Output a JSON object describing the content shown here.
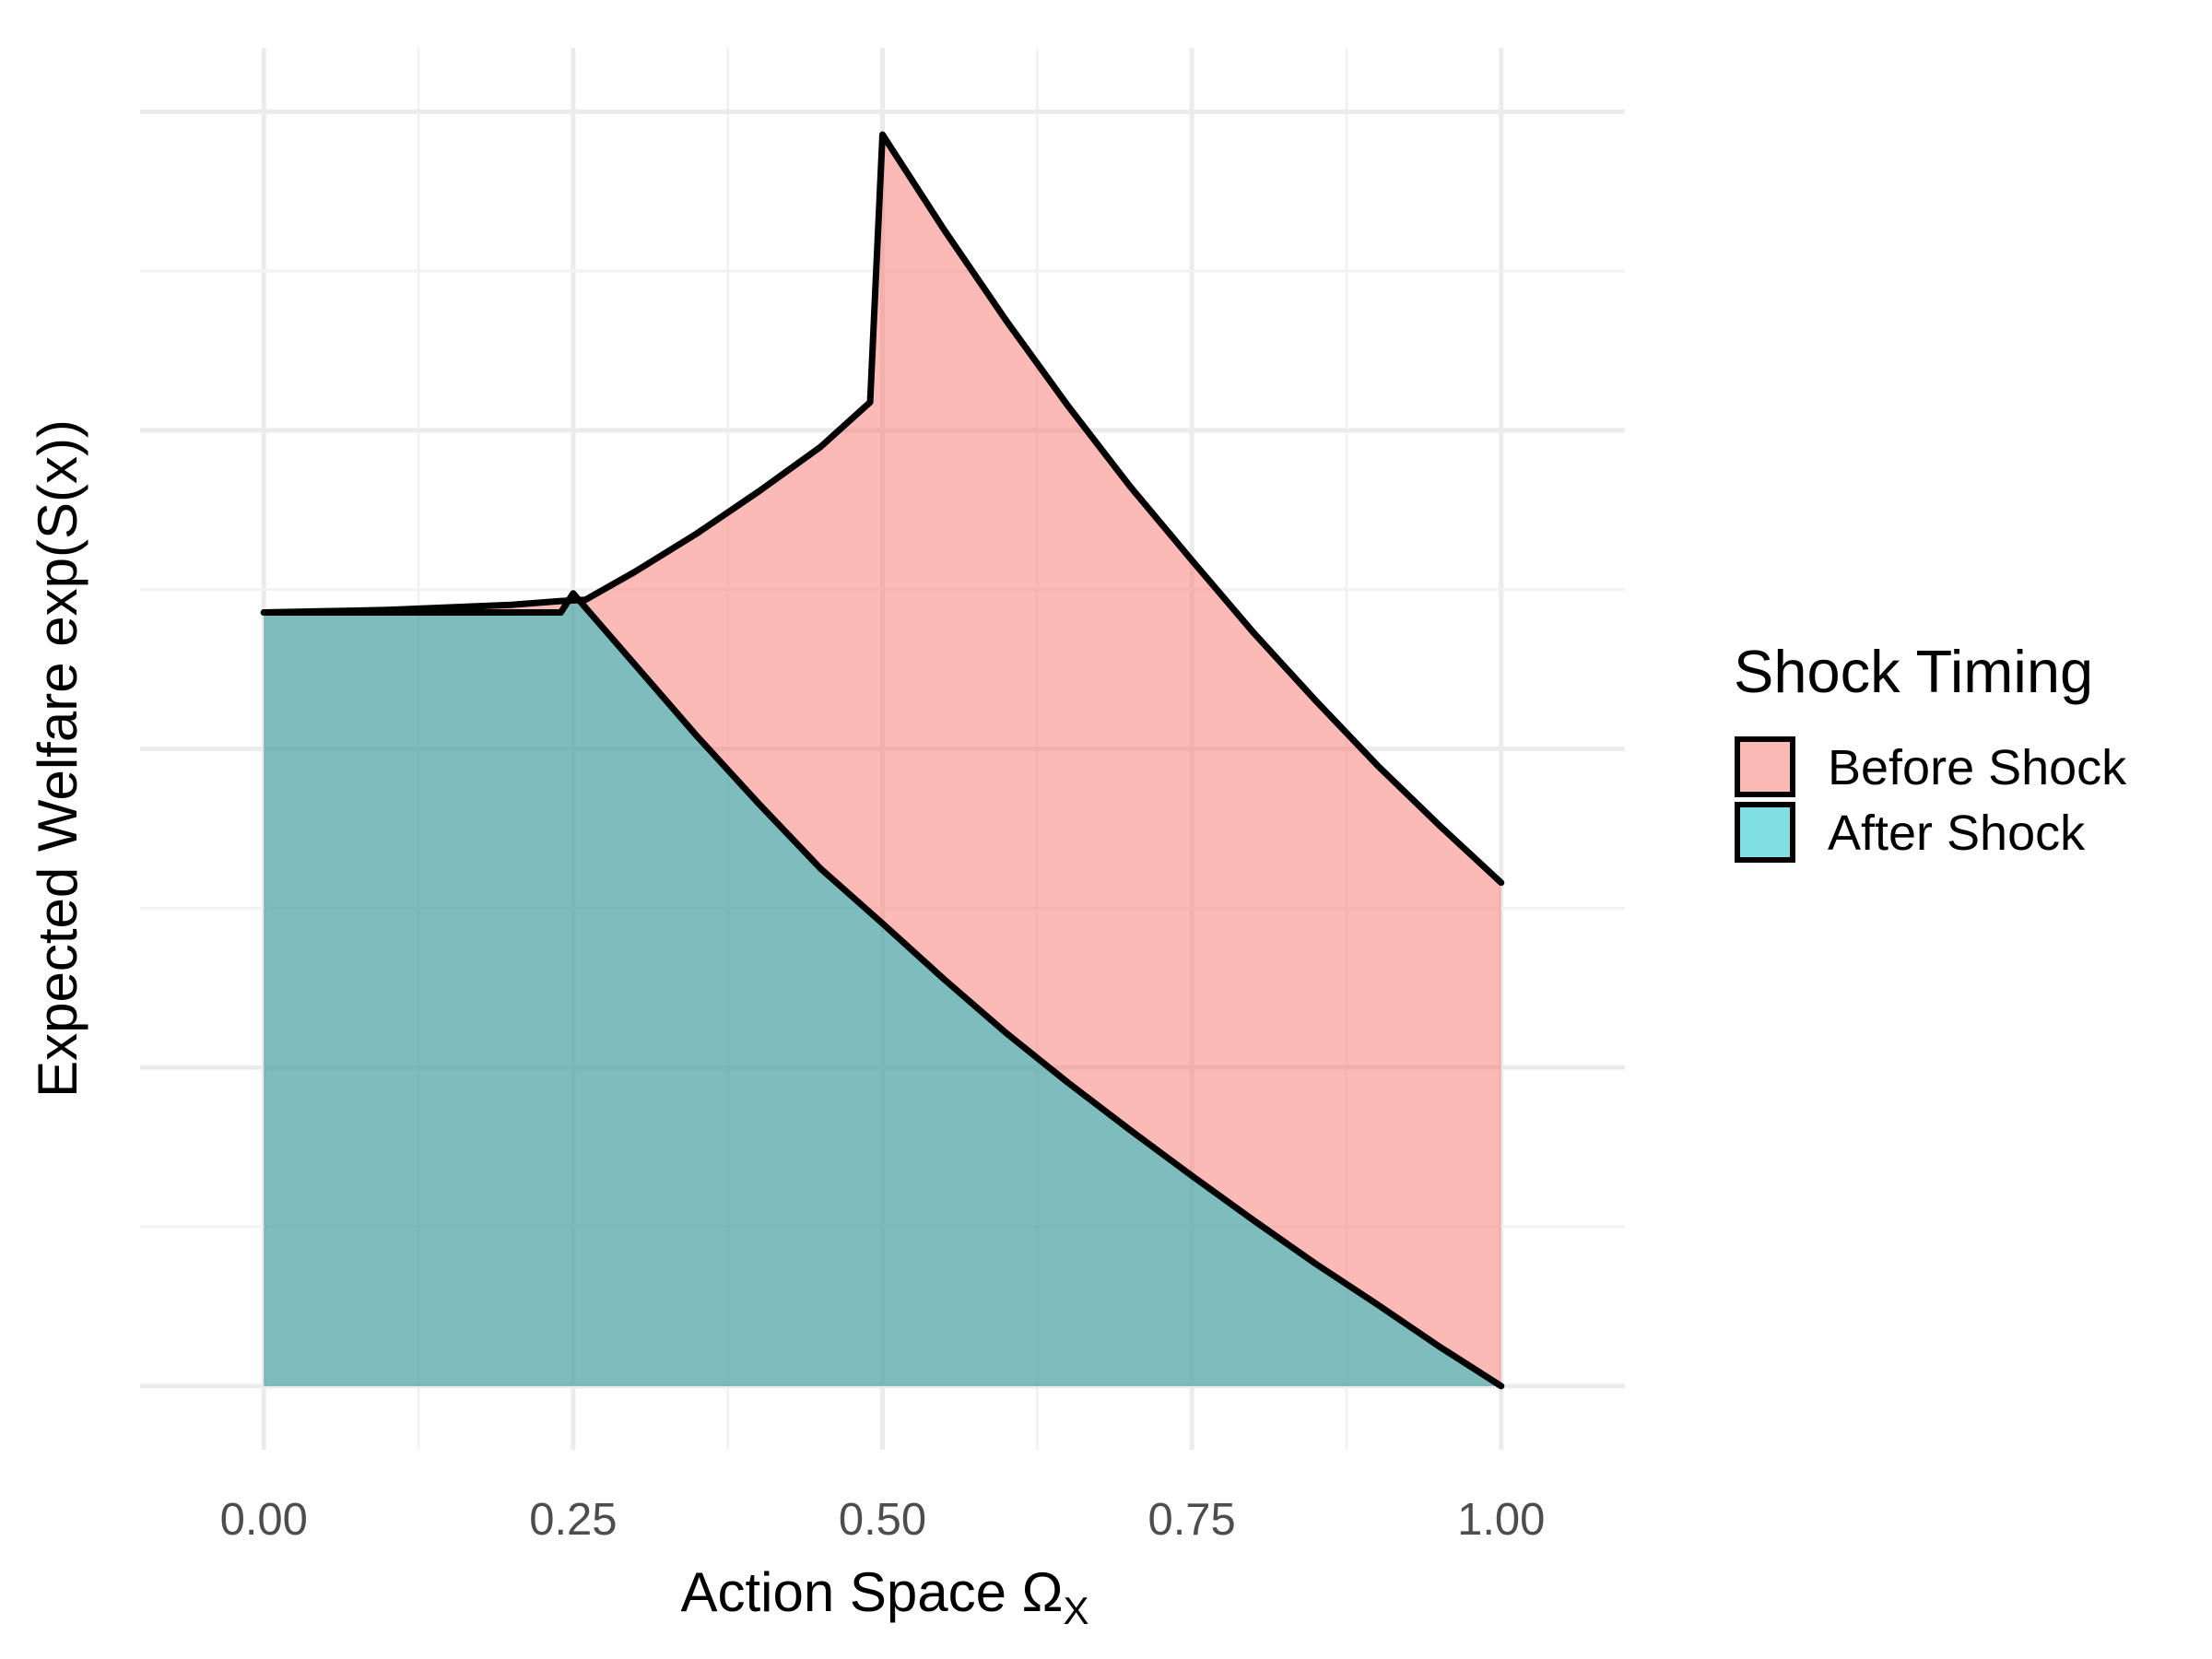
{
  "chart_data": {
    "type": "area",
    "title": "",
    "xlabel": "Action Space Ω",
    "xlabel_subscript": "X",
    "ylabel": "Expected Welfare exp(S(x))",
    "xlim": [
      -0.1,
      1.1
    ],
    "ylim": [
      -0.05,
      1.05
    ],
    "x_ticks": [
      0,
      0.25,
      0.5,
      0.75,
      1
    ],
    "x_tick_labels": [
      "0.00",
      "0.25",
      "0.50",
      "0.75",
      "1.00"
    ],
    "y_ticks": [
      0,
      0.125,
      0.25,
      0.375,
      0.5,
      0.625,
      0.75,
      0.875,
      1
    ],
    "y_tick_labels": [],
    "grid": true,
    "legend": {
      "title": "Shock Timing",
      "position": "right"
    },
    "series": [
      {
        "name": "Before Shock",
        "color": "#F8766D",
        "fill_opacity": 0.5,
        "x": [
          0,
          0.05,
          0.1,
          0.15,
          0.2,
          0.24,
          0.26,
          0.3,
          0.35,
          0.4,
          0.45,
          0.49,
          0.5,
          0.55,
          0.6,
          0.65,
          0.7,
          0.75,
          0.8,
          0.85,
          0.9,
          0.95,
          1
        ],
        "values": [
          0.607,
          0.608,
          0.609,
          0.611,
          0.613,
          0.616,
          0.617,
          0.639,
          0.669,
          0.702,
          0.737,
          0.772,
          0.982,
          0.907,
          0.836,
          0.769,
          0.706,
          0.648,
          0.591,
          0.538,
          0.487,
          0.44,
          0.395
        ]
      },
      {
        "name": "After Shock",
        "color": "#00BFC4",
        "fill_opacity": 0.5,
        "x": [
          0,
          0.05,
          0.1,
          0.15,
          0.2,
          0.24,
          0.25,
          0.3,
          0.35,
          0.4,
          0.45,
          0.5,
          0.55,
          0.6,
          0.65,
          0.7,
          0.75,
          0.8,
          0.85,
          0.9,
          0.95,
          1
        ],
        "values": [
          0.607,
          0.607,
          0.607,
          0.607,
          0.607,
          0.607,
          0.622,
          0.566,
          0.51,
          0.457,
          0.406,
          0.363,
          0.319,
          0.277,
          0.238,
          0.201,
          0.165,
          0.13,
          0.096,
          0.064,
          0.031,
          0.0
        ]
      }
    ]
  }
}
